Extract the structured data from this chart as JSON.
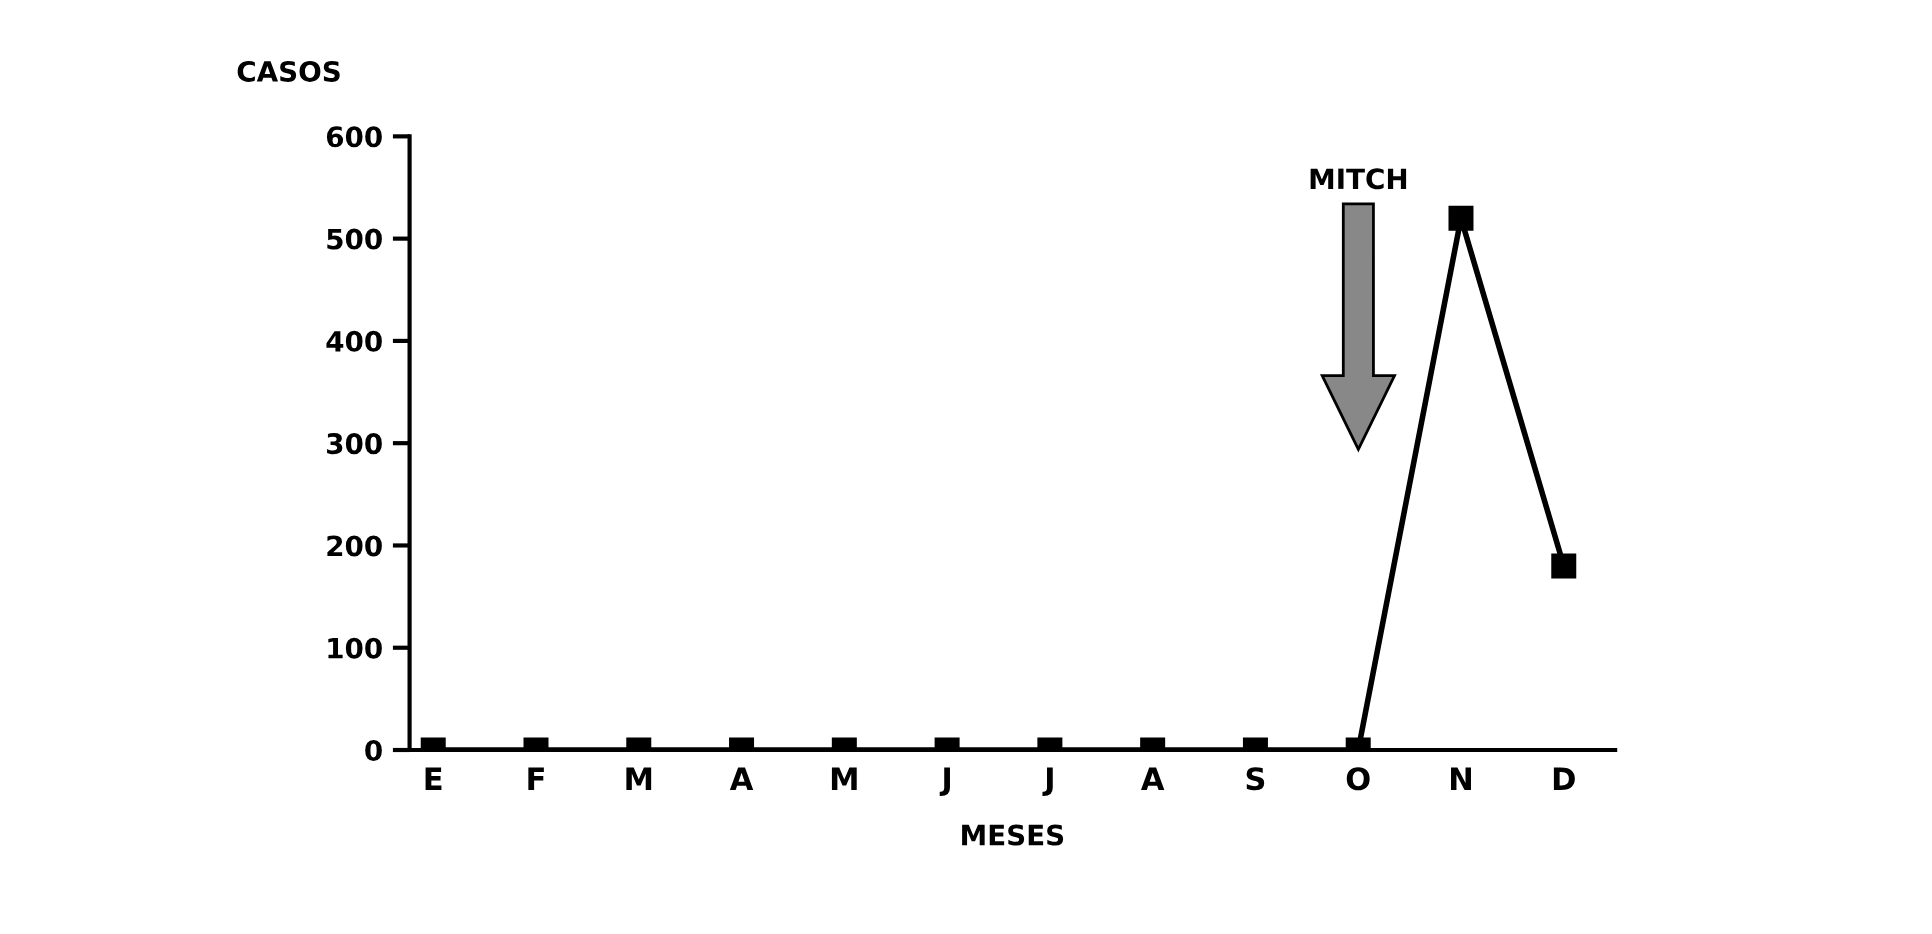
{
  "chart_data": {
    "type": "line",
    "xlabel": "MESES",
    "ylabel": "CASOS",
    "categories": [
      "E",
      "F",
      "M",
      "A",
      "M",
      "J",
      "J",
      "A",
      "S",
      "O",
      "N",
      "D"
    ],
    "series": [
      {
        "color": "#000000",
        "values": [
          0,
          0,
          0,
          0,
          0,
          0,
          0,
          0,
          0,
          0,
          520,
          180
        ]
      }
    ],
    "ylim": [
      0,
      600
    ],
    "yticks": [
      0,
      100,
      200,
      300,
      400,
      500,
      600
    ],
    "marker": "square",
    "line_style": "solid",
    "grid": false,
    "legend": false,
    "annotations": [
      "MITCH"
    ]
  }
}
